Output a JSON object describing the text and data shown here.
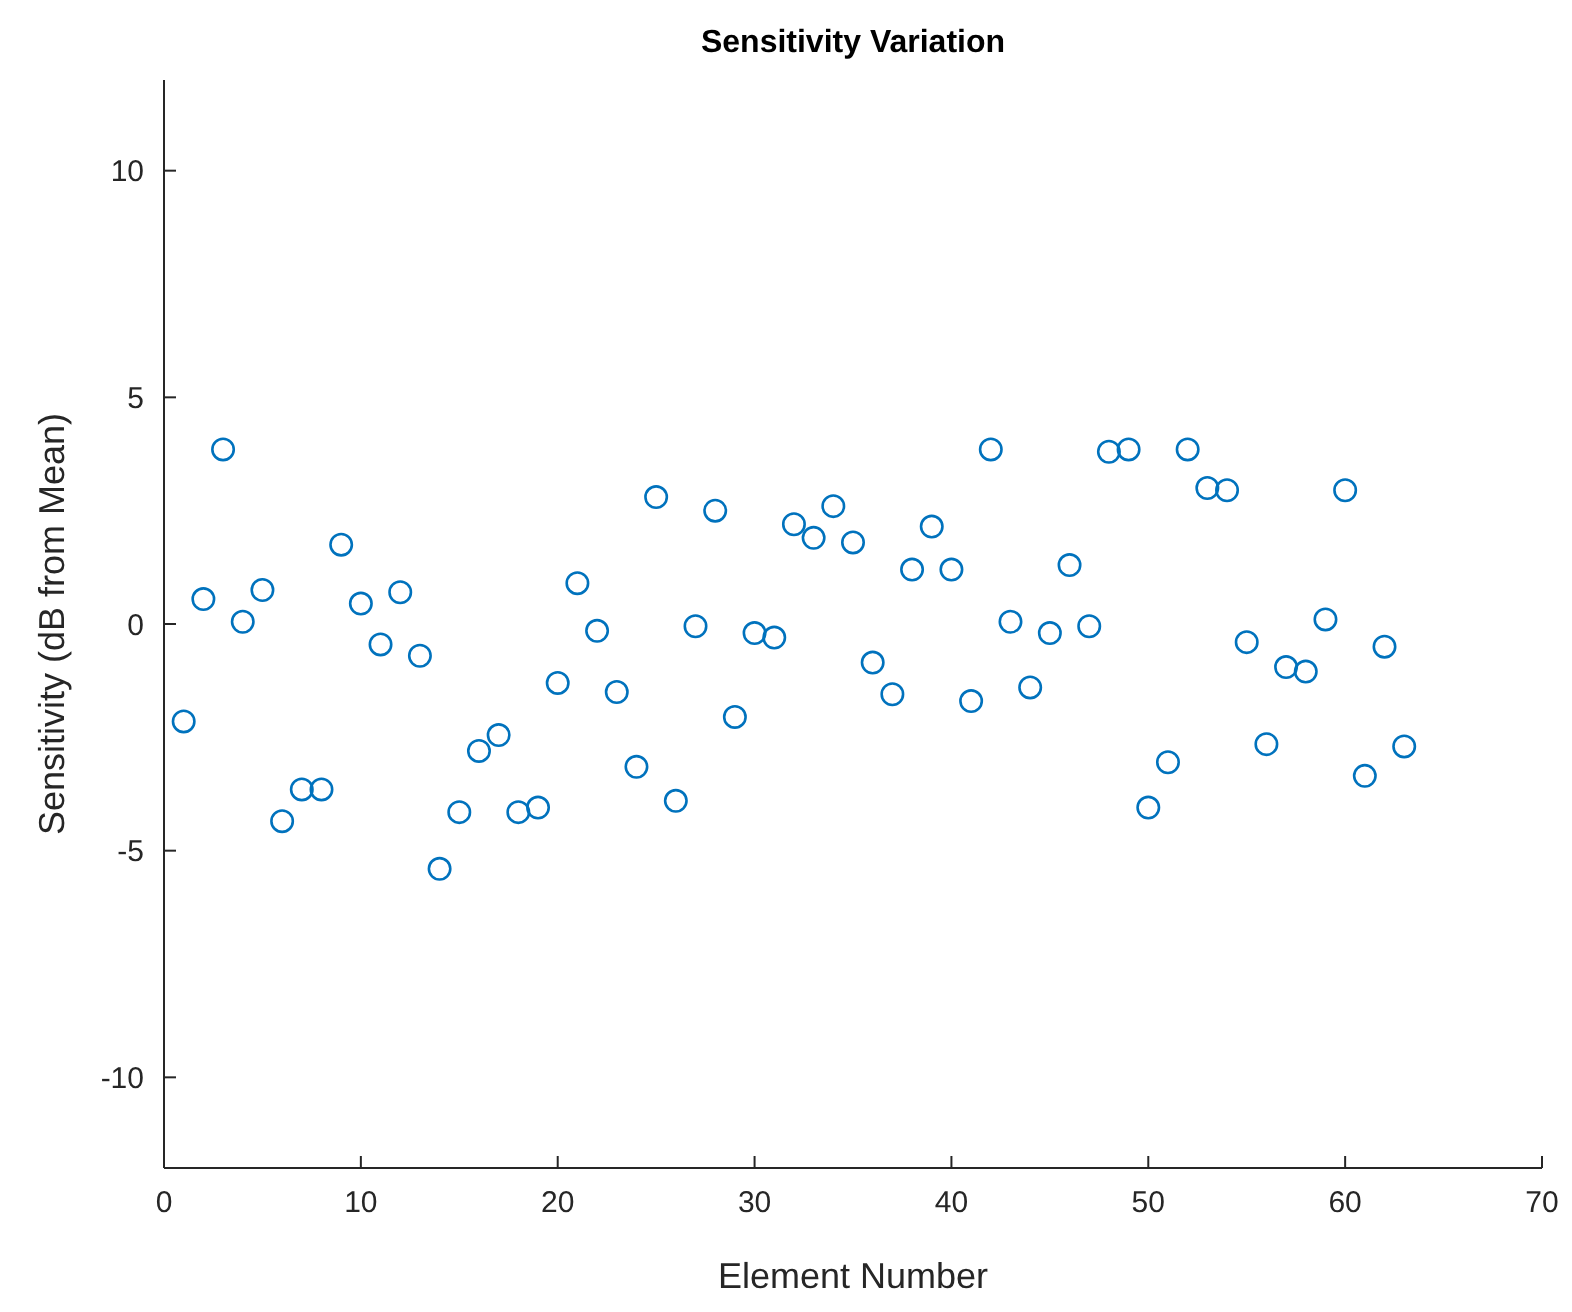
{
  "chart_data": {
    "type": "scatter",
    "title": "Sensitivity Variation",
    "xlabel": "Element Number",
    "ylabel": "Sensitivity (dB from Mean)",
    "marker": "circle",
    "xlim": [
      0,
      70
    ],
    "ylim": [
      -12,
      12
    ],
    "xticks": [
      0,
      10,
      20,
      30,
      40,
      50,
      60,
      70
    ],
    "yticks": [
      -10,
      -5,
      0,
      5,
      10
    ],
    "series": [
      {
        "color": "#0072bd",
        "x": [
          1,
          2,
          3,
          4,
          5,
          6,
          7,
          8,
          9,
          10,
          11,
          12,
          13,
          14,
          15,
          16,
          17,
          18,
          19,
          20,
          21,
          22,
          23,
          24,
          25,
          26,
          27,
          28,
          29,
          30,
          31,
          32,
          33,
          34,
          35,
          36,
          37,
          38,
          39,
          40,
          41,
          42,
          43,
          44,
          45,
          46,
          47,
          48,
          49,
          50,
          51,
          52,
          53,
          54,
          55,
          56,
          57,
          58,
          59,
          60,
          61,
          62,
          63
        ],
        "values": [
          -2.15,
          0.55,
          3.85,
          0.05,
          0.75,
          -4.35,
          -3.65,
          -3.65,
          1.75,
          0.45,
          -0.45,
          0.7,
          -0.7,
          -5.4,
          -4.15,
          -2.8,
          -2.45,
          -4.15,
          -4.05,
          -1.3,
          0.9,
          -0.15,
          -1.5,
          -3.15,
          2.8,
          -3.9,
          -0.05,
          2.5,
          -2.05,
          -0.2,
          -0.3,
          2.2,
          1.9,
          2.6,
          1.8,
          -0.85,
          -1.55,
          1.2,
          2.15,
          1.2,
          -1.7,
          3.85,
          0.05,
          -1.4,
          -0.2,
          1.3,
          -0.05,
          3.8,
          3.85,
          -4.05,
          -3.05,
          3.85,
          3.0,
          2.95,
          -0.4,
          -2.65,
          -0.95,
          -1.05,
          0.1,
          2.95,
          -3.35,
          -0.5,
          -2.7
        ]
      }
    ]
  }
}
